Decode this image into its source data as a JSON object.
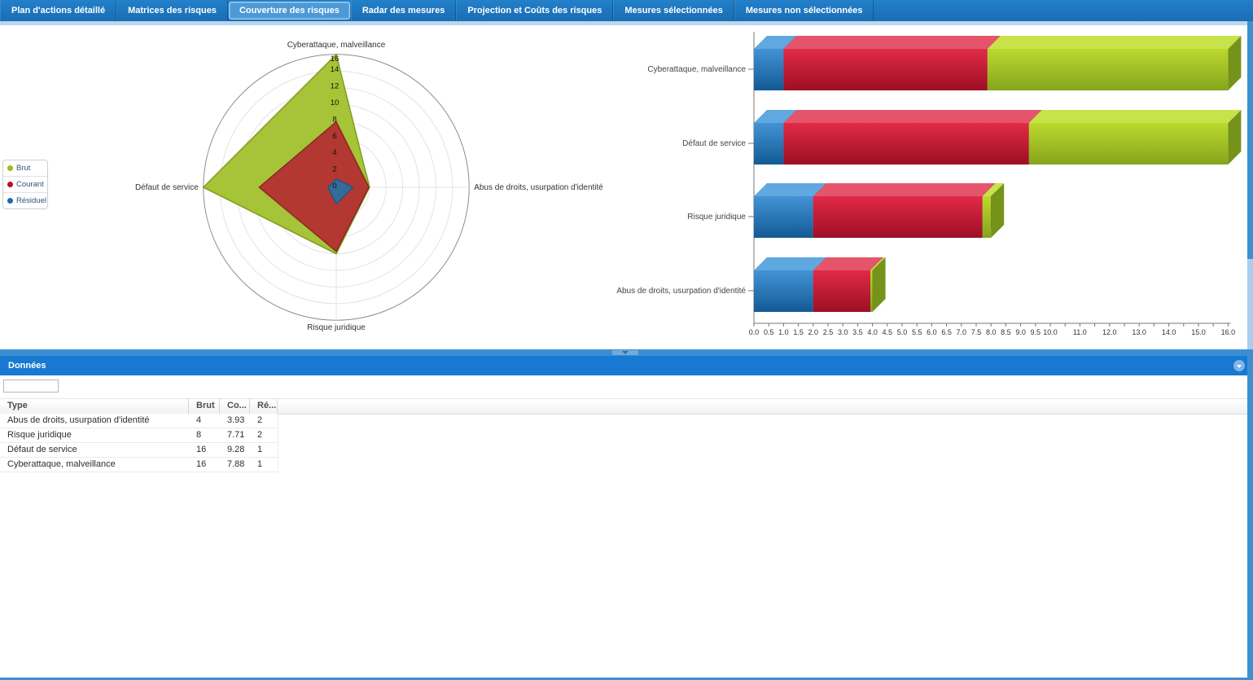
{
  "tab_bar": {
    "tabs": [
      {
        "label": "Plan d'actions détaillé",
        "selected": false
      },
      {
        "label": "Matrices des risques",
        "selected": false
      },
      {
        "label": "Couverture des risques",
        "selected": true
      },
      {
        "label": "Radar des mesures",
        "selected": false
      },
      {
        "label": "Projection et Coûts des risques",
        "selected": false
      },
      {
        "label": "Mesures sélectionnées",
        "selected": false
      },
      {
        "label": "Mesures non sélectionnées",
        "selected": false
      }
    ]
  },
  "legend": {
    "items": [
      {
        "label": "Brut",
        "color": "#a3b81c"
      },
      {
        "label": "Courant",
        "color": "#c00d24"
      },
      {
        "label": "Résiduel",
        "color": "#2068b0"
      }
    ]
  },
  "chart_data": [
    {
      "type": "radar",
      "categories": [
        "Cyberattaque, malveillance",
        "Abus de droits, usurpation d'identité",
        "Risque juridique",
        "Défaut de service"
      ],
      "series": [
        {
          "name": "Brut",
          "values": [
            16,
            4,
            8,
            16
          ],
          "fill": "#a6c437",
          "stroke": "#7f9c1d"
        },
        {
          "name": "Courant",
          "values": [
            7.88,
            3.93,
            7.71,
            9.28
          ],
          "fill": "#b23831",
          "stroke": "#8c2a24"
        },
        {
          "name": "Résiduel",
          "values": [
            1,
            2,
            2,
            1
          ],
          "fill": "#336b9b",
          "stroke": "#27557e"
        }
      ],
      "rmax": 16,
      "tick_labels": [
        0,
        2,
        4,
        6,
        8,
        10,
        12,
        14,
        16
      ],
      "grid": "circles every 2, radial axes",
      "legend_position": "left"
    },
    {
      "type": "bar",
      "subtype": "horizontal-3d-overlay",
      "categories": [
        "Cyberattaque, malveillance",
        "Défaut de service",
        "Risque juridique",
        "Abus de droits, usurpation d'identité"
      ],
      "series": [
        {
          "name": "Résiduel",
          "values": [
            1,
            1,
            2,
            2
          ],
          "colors": {
            "front_top": "#4293d6",
            "front_bottom": "#135a94",
            "top": "#5fa8e0",
            "side": "#0f4a7e"
          }
        },
        {
          "name": "Courant",
          "values": [
            7.88,
            9.28,
            7.71,
            3.93
          ],
          "colors": {
            "front_top": "#e22a47",
            "front_bottom": "#9c0f24",
            "top": "#e4556b",
            "side": "#8a0c1e"
          }
        },
        {
          "name": "Brut",
          "values": [
            16,
            16,
            8,
            4
          ],
          "colors": {
            "front_top": "#bcd92f",
            "front_bottom": "#85a41c",
            "top": "#c8e34a",
            "side": "#75931a"
          }
        }
      ],
      "xlim": [
        0,
        16
      ],
      "xtick_step": 0.5,
      "xtick_label_rule": "every 0.5 up to 10.0, then every 1.0",
      "grid": "off"
    }
  ],
  "data_panel": {
    "title": "Données",
    "filter_value": "",
    "table": {
      "columns": [
        "Type",
        "Brut",
        "Co...",
        "Ré..."
      ],
      "rows": [
        [
          "Abus de droits, usurpation d'identité",
          "4",
          "3.93",
          "2"
        ],
        [
          "Risque juridique",
          "8",
          "7.71",
          "2"
        ],
        [
          "Défaut de service",
          "16",
          "9.28",
          "1"
        ],
        [
          "Cyberattaque, malveillance",
          "16",
          "7.88",
          "1"
        ]
      ]
    }
  }
}
